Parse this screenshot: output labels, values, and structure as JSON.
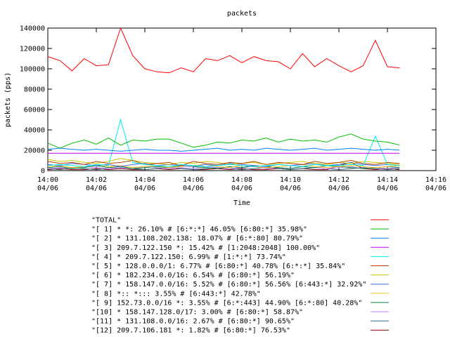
{
  "chart_data": {
    "type": "line",
    "title": "packets",
    "x_label": "Time",
    "y_label": "packets (pps)",
    "x": [
      0,
      0.5,
      1,
      1.5,
      2,
      2.5,
      3,
      3.5,
      4,
      4.5,
      5,
      5.5,
      6,
      6.5,
      7,
      7.5,
      8,
      8.5,
      9,
      9.5,
      10,
      10.5,
      11,
      11.5,
      12,
      12.5,
      13,
      13.5,
      14,
      14.5
    ],
    "xlim": [
      0,
      16
    ],
    "xticks": [
      {
        "value": 0,
        "label": "14:00",
        "date": "04/06"
      },
      {
        "value": 2,
        "label": "14:02",
        "date": "04/06"
      },
      {
        "value": 4,
        "label": "14:04",
        "date": "04/06"
      },
      {
        "value": 6,
        "label": "14:06",
        "date": "04/06"
      },
      {
        "value": 8,
        "label": "14:08",
        "date": "04/06"
      },
      {
        "value": 10,
        "label": "14:10",
        "date": "04/06"
      },
      {
        "value": 12,
        "label": "14:12",
        "date": "04/06"
      },
      {
        "value": 14,
        "label": "14:14",
        "date": "04/06"
      },
      {
        "value": 16,
        "label": "14:16",
        "date": "04/06"
      }
    ],
    "ylim": [
      0,
      140000
    ],
    "yticks": [
      0,
      20000,
      40000,
      60000,
      80000,
      100000,
      120000,
      140000
    ],
    "grid": false,
    "legend": "bottom",
    "series": [
      {
        "name": "\"TOTAL\"",
        "color": "#ff0000",
        "values": [
          112000,
          108000,
          98000,
          110000,
          103000,
          104000,
          140000,
          113000,
          100000,
          97000,
          96000,
          101000,
          97000,
          110000,
          108000,
          113000,
          106000,
          112000,
          108000,
          107000,
          100000,
          115000,
          102000,
          110000,
          103000,
          97000,
          103000,
          128000,
          102000,
          101000
        ]
      },
      {
        "name": "\"[ 1] * *: 26.10% # [6:*:*] 46.05% [6:80:*] 35.98%\"",
        "color": "#00c000",
        "values": [
          27000,
          22000,
          27000,
          30000,
          26000,
          32000,
          25000,
          30000,
          29000,
          31000,
          31000,
          27000,
          23000,
          25000,
          28000,
          27000,
          30000,
          29000,
          32000,
          28000,
          31000,
          29000,
          30000,
          28000,
          33000,
          36000,
          31000,
          29000,
          28000,
          25000
        ]
      },
      {
        "name": "\"[ 2] * 131.108.202.138: 18.07% # [6:*:80] 80.79%\"",
        "color": "#0080ff",
        "values": [
          21000,
          22000,
          21000,
          20000,
          21000,
          20000,
          19000,
          20000,
          21000,
          20000,
          20000,
          19000,
          20000,
          21000,
          22000,
          20000,
          21000,
          20000,
          22000,
          21000,
          20000,
          21000,
          22000,
          20000,
          21000,
          22000,
          21000,
          20000,
          21000,
          20000
        ]
      },
      {
        "name": "\"[ 3] 209.7.122.150 *: 15.42% # [1:2048:2048] 100.00%\"",
        "color": "#c000ff",
        "values": [
          17000,
          17000,
          17000,
          17000,
          17000,
          17000,
          17000,
          17000,
          17000,
          17000,
          17000,
          17000,
          17000,
          17000,
          17000,
          17000,
          17000,
          17000,
          17000,
          17000,
          17000,
          17000,
          17000,
          17000,
          17000,
          17000,
          17000,
          17000,
          17000,
          17000
        ]
      },
      {
        "name": "\"[ 4] * 209.7.122.150: 6.99% # [1:*:*] 73.74%\"",
        "color": "#00eeee",
        "values": [
          5000,
          6000,
          5000,
          4000,
          6000,
          5000,
          50000,
          8000,
          6000,
          5000,
          4000,
          6000,
          5000,
          4000,
          5000,
          6000,
          5000,
          4000,
          5000,
          6000,
          5000,
          4000,
          6000,
          5000,
          5000,
          6000,
          5000,
          34000,
          6000,
          5000
        ]
      },
      {
        "name": "\"[ 5] * 128.0.0.0/1: 6.77% # [6:80:*] 40.78% [6:*:*] 35.84%\"",
        "color": "#c04000",
        "values": [
          9000,
          7000,
          8000,
          6000,
          9000,
          7000,
          8000,
          10000,
          6000,
          7000,
          8000,
          5000,
          9000,
          7000,
          6000,
          8000,
          7000,
          9000,
          6000,
          8000,
          7000,
          6000,
          9000,
          7000,
          8000,
          10000,
          7000,
          6000,
          8000,
          7000
        ]
      },
      {
        "name": "\"[ 6] * 182.234.0.0/16: 6.54% # [6:80:*] 56.19%\"",
        "color": "#c8c800",
        "values": [
          11000,
          9000,
          10000,
          8000,
          7000,
          9000,
          12000,
          10000,
          8000,
          7000,
          6000,
          8000,
          7000,
          9000,
          8000,
          6000,
          7000,
          8000,
          6000,
          7000,
          8000,
          9000,
          7000,
          6000,
          8000,
          7000,
          9000,
          8000,
          7000,
          6000
        ]
      },
      {
        "name": "\"[ 7] * 158.147.0.0/16: 5.52% # [6:80:*] 56.56% [6:443:*] 32.92%\"",
        "color": "#4169e1",
        "values": [
          6000,
          5000,
          7000,
          6000,
          5000,
          6000,
          4000,
          6000,
          7000,
          5000,
          6000,
          5000,
          4000,
          6000,
          5000,
          7000,
          6000,
          5000,
          4000,
          6000,
          5000,
          6000,
          7000,
          5000,
          6000,
          8000,
          6000,
          5000,
          6000,
          5000
        ]
      },
      {
        "name": "\"[ 8] *:: *::: 3.55% # [6:443:*] 42.78%\"",
        "color": "#ffc020",
        "values": [
          4000,
          5000,
          3000,
          4000,
          6000,
          4000,
          5000,
          3000,
          4000,
          5000,
          3000,
          4000,
          5000,
          6000,
          4000,
          3000,
          5000,
          4000,
          3000,
          4000,
          5000,
          6000,
          4000,
          3000,
          4000,
          5000,
          4000,
          3000,
          4000,
          5000
        ]
      },
      {
        "name": "\"[ 9] 152.73.0.0/16 *: 3.55% # [6:*:443] 44.90% [6:*:80] 40.28%\"",
        "color": "#008040",
        "values": [
          3000,
          4000,
          2000,
          3000,
          5000,
          3000,
          4000,
          2000,
          3000,
          4000,
          3000,
          5000,
          4000,
          3000,
          2000,
          4000,
          3000,
          5000,
          4000,
          3000,
          2000,
          4000,
          3000,
          5000,
          4000,
          3000,
          2000,
          3000,
          4000,
          3000
        ]
      },
      {
        "name": "\"[10] * 158.147.128.0/17: 3.00% # [6:80:*] 58.87%\"",
        "color": "#c080ff",
        "values": [
          2000,
          3000,
          2000,
          4000,
          3000,
          2000,
          3000,
          2000,
          4000,
          3000,
          2000,
          3000,
          2000,
          4000,
          3000,
          2000,
          3000,
          4000,
          2000,
          3000,
          2000,
          4000,
          3000,
          2000,
          3000,
          4000,
          2000,
          3000,
          2000,
          3000
        ]
      },
      {
        "name": "\"[11] * 131.108.0.0/16: 2.67% # [6:80:*] 90.65%\"",
        "color": "#306080",
        "values": [
          2000,
          1000,
          3000,
          2000,
          1000,
          2000,
          3000,
          2000,
          1000,
          2000,
          3000,
          2000,
          1000,
          2000,
          3000,
          2000,
          1000,
          2000,
          3000,
          2000,
          1000,
          2000,
          3000,
          2000,
          1000,
          2000,
          3000,
          2000,
          1000,
          2000
        ]
      },
      {
        "name": "\"[12] 209.7.106.181 *: 1.82% # [6:80:*] 76.53%\"",
        "color": "#8b0000",
        "values": [
          1000,
          2000,
          1000,
          1000,
          2000,
          1000,
          2000,
          1000,
          1000,
          2000,
          1000,
          2000,
          1000,
          1000,
          2000,
          1000,
          2000,
          1000,
          1000,
          2000,
          1000,
          2000,
          1000,
          1000,
          5000,
          8000,
          2000,
          1000,
          2000,
          1000
        ]
      }
    ]
  }
}
